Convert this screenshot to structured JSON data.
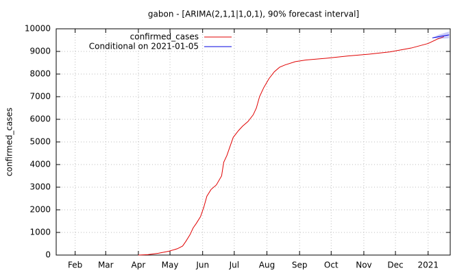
{
  "chart_data": {
    "type": "line",
    "title": "gabon -  [ARIMA(2,1,1|1,0,1), 90% forecast interval]",
    "y_label": "confirmed_cases",
    "xlim": [
      13,
      387
    ],
    "xticks": [
      {
        "value": 31,
        "label": "Feb"
      },
      {
        "value": 60,
        "label": "Mar"
      },
      {
        "value": 91,
        "label": "Apr"
      },
      {
        "value": 121,
        "label": "May"
      },
      {
        "value": 152,
        "label": "Jun"
      },
      {
        "value": 182,
        "label": "Jul"
      },
      {
        "value": 213,
        "label": "Aug"
      },
      {
        "value": 244,
        "label": "Sep"
      },
      {
        "value": 274,
        "label": "Oct"
      },
      {
        "value": 305,
        "label": "Nov"
      },
      {
        "value": 335,
        "label": "Dec"
      },
      {
        "value": 366,
        "label": "2021"
      }
    ],
    "ylim": [
      0,
      10000
    ],
    "yticks": [
      0,
      1000,
      2000,
      3000,
      4000,
      5000,
      6000,
      7000,
      8000,
      9000,
      10000
    ],
    "grid": true,
    "legend": "top-left",
    "series": [
      {
        "name": "confirmed_cases",
        "color": "#e00000",
        "x": [
          91,
          100,
          110,
          120,
          128,
          133,
          136,
          140,
          143,
          146,
          150,
          153,
          156,
          160,
          165,
          170,
          172,
          175,
          178,
          181,
          186,
          190,
          195,
          200,
          203,
          206,
          210,
          215,
          220,
          225,
          230,
          240,
          250,
          270,
          290,
          310,
          330,
          350,
          366,
          375,
          381
        ],
        "values": [
          0,
          20,
          80,
          170,
          280,
          400,
          600,
          900,
          1200,
          1400,
          1700,
          2100,
          2600,
          2900,
          3100,
          3500,
          4100,
          4400,
          4800,
          5200,
          5500,
          5700,
          5900,
          6200,
          6500,
          7000,
          7400,
          7800,
          8100,
          8300,
          8400,
          8550,
          8620,
          8700,
          8800,
          8880,
          8980,
          9150,
          9350,
          9550,
          9650
        ]
      },
      {
        "name": "Conditional on 2021-01-05",
        "color": "#0000e0",
        "x": [
          370,
          376,
          386
        ],
        "values": [
          9600,
          9650,
          9730
        ],
        "lower": [
          9600,
          9560,
          9580
        ],
        "upper": [
          9600,
          9740,
          9880
        ]
      }
    ]
  }
}
